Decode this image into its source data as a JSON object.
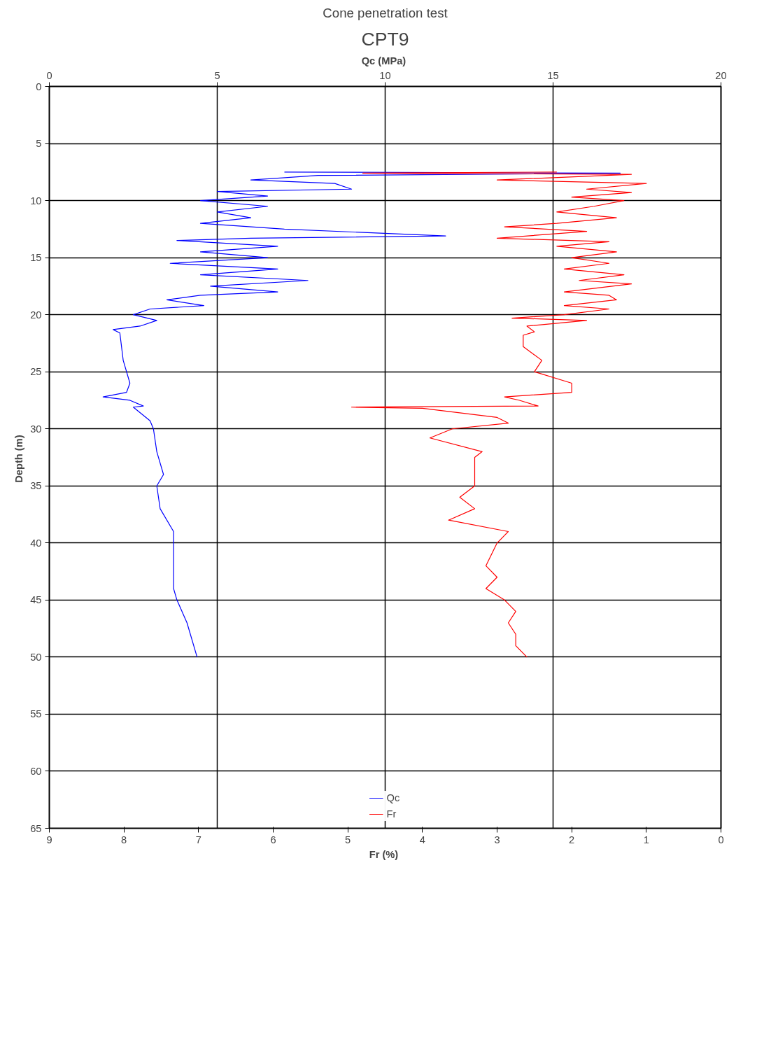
{
  "chart_data": {
    "type": "line",
    "title": "Cone penetration test",
    "subtitle": "CPT9",
    "xlabel": "Fr  (%)",
    "x2label": "Qc  (MPa)",
    "ylabel": "Depth  (m)",
    "xlim": [
      9,
      0
    ],
    "xticks": [
      9,
      8,
      7,
      6,
      5,
      4,
      3,
      2,
      1,
      0
    ],
    "x2lim": [
      0,
      20
    ],
    "x2ticks": [
      0,
      5,
      10,
      15,
      20
    ],
    "ylim": [
      65,
      0
    ],
    "yticks": [
      0,
      5,
      10,
      15,
      20,
      25,
      30,
      35,
      40,
      45,
      50,
      55,
      60,
      65
    ],
    "grid": true,
    "legend": "bottom",
    "series": [
      {
        "name": "Qc",
        "color": "#0000ff",
        "axis": "x2",
        "x": [
          7,
          17,
          8,
          6,
          8.5,
          9,
          5,
          6.5,
          4.5,
          6.5,
          5,
          6,
          4.5,
          7,
          11.8,
          6,
          3.8,
          6.8,
          4.5,
          6.5,
          3.6,
          6.8,
          4.5,
          7.7,
          4.8,
          6.8,
          4.5,
          3.5,
          4.6,
          3,
          2.5,
          3.2,
          2.7,
          1.9,
          2.1,
          2.2,
          2.4,
          2.3,
          1.6,
          2.4,
          2.8,
          2.5,
          3.0,
          3.1,
          3.2,
          3.4,
          3.2,
          3.3,
          3.7,
          3.7,
          3.7,
          3.7,
          3.8,
          4.1,
          4.4
        ],
        "values": [
          7.5,
          7.6,
          7.8,
          8.2,
          8.5,
          9.0,
          9.2,
          9.6,
          10.0,
          10.5,
          11.0,
          11.5,
          12.0,
          12.5,
          13.1,
          13.3,
          13.5,
          14.0,
          14.5,
          15.0,
          15.5,
          16.0,
          16.5,
          17.0,
          17.5,
          18.0,
          18.3,
          18.7,
          19.2,
          19.5,
          20.0,
          20.5,
          21.0,
          21.3,
          21.6,
          24,
          26,
          26.8,
          27.2,
          27.5,
          28.0,
          28.1,
          29.3,
          30,
          32,
          34,
          35,
          37,
          39,
          40,
          42,
          44,
          45,
          47,
          50
        ]
      },
      {
        "name": "Fr",
        "color": "#ff0000",
        "x": [
          2.2,
          4.8,
          1.2,
          3.0,
          1.0,
          1.8,
          1.2,
          2.0,
          1.3,
          1.7,
          2.2,
          1.4,
          2.2,
          2.9,
          1.8,
          3.0,
          1.5,
          2.2,
          1.4,
          2.0,
          1.5,
          2.1,
          1.3,
          1.9,
          1.2,
          2.1,
          1.5,
          1.4,
          2.1,
          1.5,
          2.1,
          2.8,
          1.8,
          2.6,
          2.5,
          2.65,
          2.65,
          2.4,
          2.5,
          2.0,
          2.0,
          2.9,
          2.7,
          2.45,
          4.95,
          4.0,
          3.0,
          2.85,
          3.6,
          3.9,
          3.2,
          3.3,
          3.3,
          3.5,
          3.3,
          3.65,
          2.85,
          3.0,
          3.15,
          3.0,
          3.15,
          2.9,
          2.75,
          2.85,
          2.75,
          2.75,
          2.6
        ],
        "values": [
          7.5,
          7.6,
          7.7,
          8.2,
          8.5,
          9.0,
          9.3,
          9.7,
          10.0,
          10.5,
          11.0,
          11.5,
          12.0,
          12.3,
          12.7,
          13.3,
          13.6,
          14.0,
          14.5,
          15.0,
          15.5,
          16.0,
          16.5,
          17.0,
          17.3,
          18.0,
          18.3,
          18.7,
          19.2,
          19.5,
          20.0,
          20.3,
          20.5,
          21.0,
          21.5,
          21.8,
          22.8,
          24,
          25,
          26,
          26.8,
          27.2,
          27.5,
          28.0,
          28.1,
          28.2,
          29,
          29.5,
          30,
          30.8,
          32,
          32.5,
          35,
          36,
          37,
          38,
          39,
          40,
          42,
          43,
          44,
          45,
          46,
          47,
          48,
          49,
          50
        ]
      }
    ]
  }
}
